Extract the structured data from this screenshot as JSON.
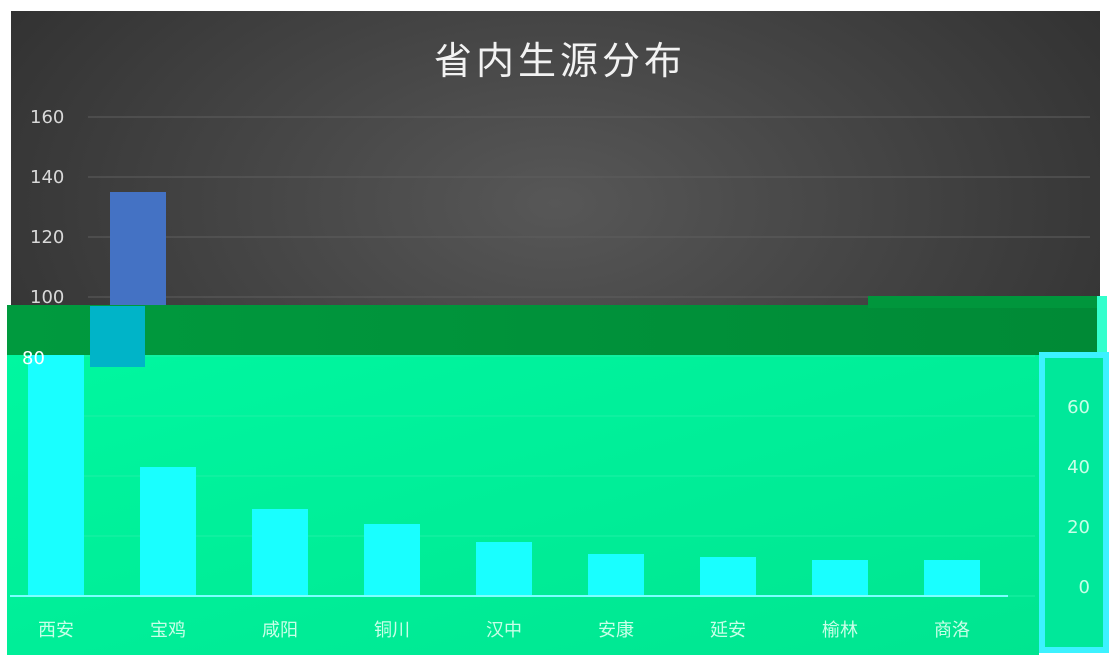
{
  "chart_data": {
    "type": "bar",
    "title": "省内生源分布",
    "categories": [
      "西安",
      "宝鸡",
      "咸阳",
      "铜川",
      "汉中",
      "安康",
      "延安",
      "榆林",
      "商洛"
    ],
    "values": [
      135,
      43,
      29,
      24,
      18,
      14,
      13,
      12,
      12
    ],
    "ylim": [
      0,
      160
    ],
    "y_ticks": [
      0,
      20,
      40,
      60,
      80,
      100,
      120,
      140,
      160
    ],
    "grid": true,
    "legend": "none"
  },
  "colors": {
    "upper_background": "#3a3a3a",
    "bar_upper": "#4472c4",
    "bar_lower": "#19ffff",
    "lower_background": "#00f29a",
    "band_background": "#00963c",
    "text_upper": "#d9d9d9",
    "text_lower": "#c8ffe8"
  }
}
